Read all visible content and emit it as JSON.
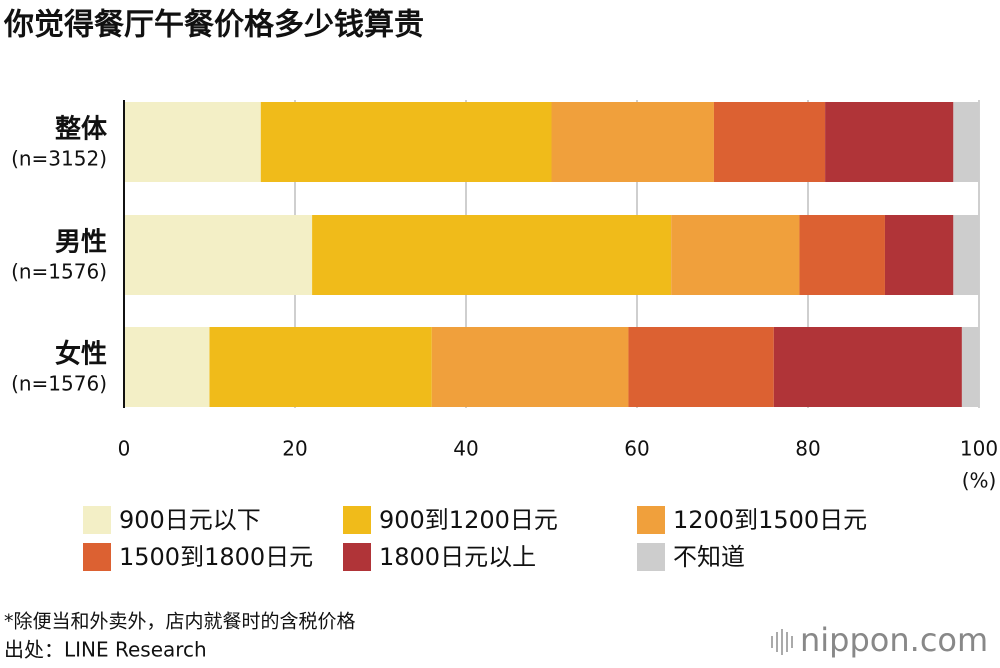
{
  "chart_data": {
    "type": "stacked_bar_horizontal",
    "title": "你觉得餐厅午餐价格多少钱算贵",
    "categories": [
      "整体",
      "男性",
      "女性"
    ],
    "category_notes": [
      "(n=3152)",
      "(n=1576)",
      "(n=1576)"
    ],
    "series": [
      {
        "name": "900日元以下",
        "color": "#f3efc6",
        "values": [
          16,
          22,
          10
        ]
      },
      {
        "name": "900到1200日元",
        "color": "#f0bb1a",
        "values": [
          34,
          42,
          26
        ]
      },
      {
        "name": "1200到1500日元",
        "color": "#f0a03c",
        "values": [
          19,
          15,
          23
        ]
      },
      {
        "name": "1500到1800日元",
        "color": "#dc6132",
        "values": [
          13,
          10,
          17
        ]
      },
      {
        "name": "1800日元以上",
        "color": "#b03438",
        "values": [
          15,
          8,
          22
        ]
      },
      {
        "name": "不知道",
        "color": "#cdcdcd",
        "values": [
          3,
          3,
          2
        ]
      }
    ],
    "xlim": [
      0,
      100
    ],
    "xticks": [
      0,
      20,
      40,
      60,
      80,
      100
    ],
    "xlabel": "(%)",
    "grid": true,
    "footnote": "*除便当和外卖外，店内就餐时的含税价格",
    "source": "出处：LINE Research",
    "logo": "nippon.com"
  }
}
